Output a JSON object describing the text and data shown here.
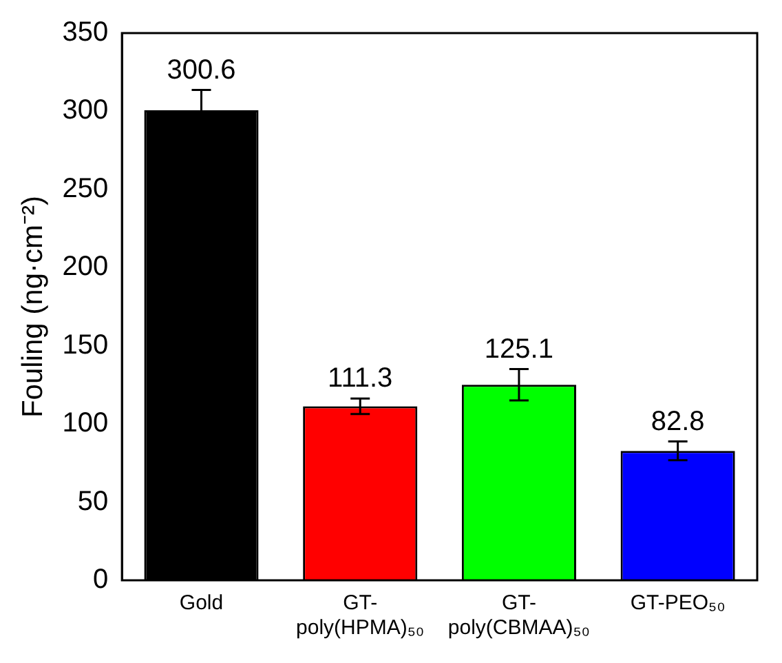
{
  "chart_data": {
    "type": "bar",
    "ylabel": "Fouling (ng·cm⁻²)",
    "categories": [
      "Gold",
      "GT-poly(HPMA)₅₀",
      "GT-poly(CBMAA)₅₀",
      "GT-PEO₅₀"
    ],
    "values": [
      300.6,
      111.3,
      125.1,
      82.8
    ],
    "colors": [
      "#000000",
      "#ff0000",
      "#00ff00",
      "#0000ff"
    ],
    "errors": [
      13,
      5,
      10,
      6
    ],
    "data_labels": true,
    "ylim": [
      0,
      350
    ],
    "yticks": [
      0,
      50,
      100,
      150,
      200,
      250,
      300,
      350
    ],
    "grid": false,
    "legend": false
  }
}
